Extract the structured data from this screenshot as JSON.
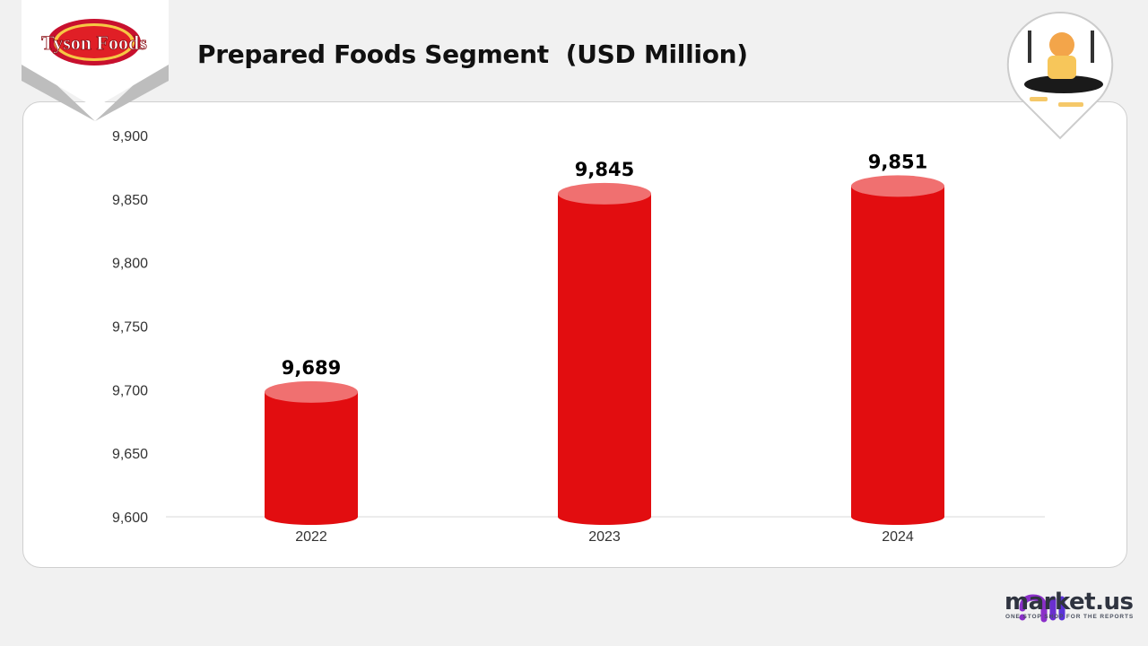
{
  "title": "Prepared Foods Segment  (USD Million)",
  "brand_logo_text": "Tyson Foods",
  "footer": {
    "brand": "market",
    "brand_suffix": ".us",
    "tagline": "ONE STOP SHOP FOR THE REPORTS"
  },
  "colors": {
    "bar": "#e20d10",
    "bar_top": "#f07070",
    "accent_purple": "#8b2fc9"
  },
  "chart_data": {
    "type": "bar",
    "style": "cylinder",
    "title": "Prepared Foods Segment  (USD Million)",
    "categories": [
      "2022",
      "2023",
      "2024"
    ],
    "values": [
      9689,
      9845,
      9851
    ],
    "data_labels": [
      "9,689",
      "9,845",
      "9,851"
    ],
    "ylim": [
      9600,
      9900
    ],
    "yticks": [
      9600,
      9650,
      9700,
      9750,
      9800,
      9850,
      9900
    ],
    "ytick_labels": [
      "9,600",
      "9,650",
      "9,700",
      "9,750",
      "9,800",
      "9,850",
      "9,900"
    ],
    "grid": false,
    "legend": "none"
  }
}
